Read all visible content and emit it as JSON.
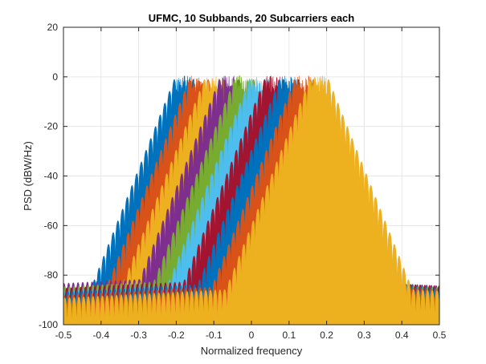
{
  "chart_data": {
    "type": "area",
    "title": "UFMC, 10 Subbands, 20 Subcarriers each",
    "xlabel": "Normalized frequency",
    "ylabel": "PSD (dBW/Hz)",
    "xlim": [
      -0.5,
      0.5
    ],
    "ylim": [
      -100,
      20
    ],
    "xticks": [
      -0.5,
      -0.4,
      -0.3,
      -0.2,
      -0.1,
      0,
      0.1,
      0.2,
      0.3,
      0.4,
      0.5
    ],
    "xtick_labels": [
      "-0.5",
      "-0.4",
      "-0.3",
      "-0.2",
      "-0.1",
      "0",
      "0.1",
      "0.2",
      "0.3",
      "0.4",
      "0.5"
    ],
    "yticks": [
      -100,
      -80,
      -60,
      -40,
      -20,
      0,
      20
    ],
    "ytick_labels": [
      "-100",
      "-80",
      "-60",
      "-40",
      "-20",
      "0",
      "20"
    ],
    "grid": true,
    "subbands": [
      {
        "center": -0.18,
        "passband": [
          -0.2,
          -0.16
        ],
        "peak_db": 2,
        "floor_db": -84,
        "color": "#0072BD"
      },
      {
        "center": -0.14,
        "passband": [
          -0.16,
          -0.12
        ],
        "peak_db": 2,
        "floor_db": -83,
        "color": "#D95319"
      },
      {
        "center": -0.1,
        "passband": [
          -0.12,
          -0.08
        ],
        "peak_db": 2,
        "floor_db": -82,
        "color": "#EDB120"
      },
      {
        "center": -0.06,
        "passband": [
          -0.08,
          -0.04
        ],
        "peak_db": 2,
        "floor_db": -80,
        "color": "#7E2F8E"
      },
      {
        "center": -0.02,
        "passband": [
          -0.04,
          0.0
        ],
        "peak_db": 2,
        "floor_db": -81,
        "color": "#77AC30"
      },
      {
        "center": 0.02,
        "passband": [
          0.0,
          0.04
        ],
        "peak_db": 2,
        "floor_db": -82,
        "color": "#4DBEEE"
      },
      {
        "center": 0.06,
        "passband": [
          0.04,
          0.08
        ],
        "peak_db": 2,
        "floor_db": -81,
        "color": "#A2142F"
      },
      {
        "center": 0.1,
        "passband": [
          0.08,
          0.12
        ],
        "peak_db": 2,
        "floor_db": -82,
        "color": "#0072BD"
      },
      {
        "center": 0.14,
        "passband": [
          0.12,
          0.16
        ],
        "peak_db": 2,
        "floor_db": -83,
        "color": "#D95319"
      },
      {
        "center": 0.18,
        "passband": [
          0.16,
          0.2
        ],
        "peak_db": 2,
        "floor_db": -84,
        "color": "#EDB120"
      }
    ],
    "colors": {
      "background": "#ffffff",
      "axes_background": "#ffffff",
      "grid": "#e6e6e6",
      "axis": "#262626",
      "text": "#262626"
    }
  }
}
